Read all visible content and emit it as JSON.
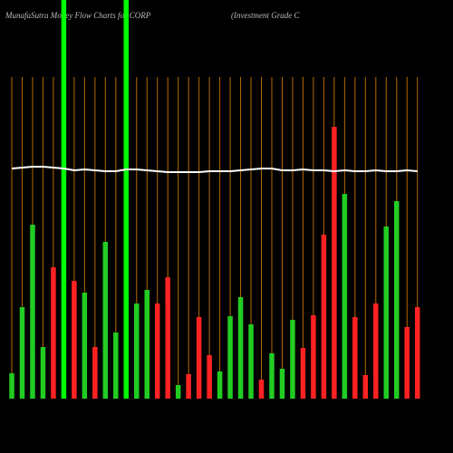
{
  "chart_data": {
    "type": "bar",
    "title": "MunafaSutra  Money Flow  Charts for CORP",
    "subtitle": "(Investment Grade  C",
    "categories": [
      null,
      null,
      null,
      null,
      null,
      null,
      null,
      null,
      null,
      null,
      null,
      null,
      null,
      null,
      null,
      null,
      null,
      null,
      null,
      null,
      null,
      null,
      null,
      null,
      null,
      null,
      null,
      null,
      null,
      null,
      null,
      null,
      null,
      null,
      null,
      null,
      null,
      null,
      null,
      null
    ],
    "values": [
      28,
      101,
      192,
      57,
      145,
      440,
      130,
      117,
      57,
      173,
      73,
      440,
      105,
      120,
      105,
      134,
      15,
      27,
      90,
      48,
      30,
      91,
      112,
      82,
      21,
      50,
      33,
      87,
      56,
      92,
      181,
      300,
      226,
      90,
      26,
      105,
      190,
      218,
      79,
      101
    ],
    "colors": [
      "#22cc22",
      "#22cc22",
      "#22cc22",
      "#22cc22",
      "#ff2222",
      "#00ff00",
      "#ff2222",
      "#22cc22",
      "#ff2222",
      "#22cc22",
      "#22cc22",
      "#00ff00",
      "#22cc22",
      "#22cc22",
      "#ff2222",
      "#ff2222",
      "#22cc22",
      "#ff2222",
      "#ff2222",
      "#ff2222",
      "#22cc22",
      "#22cc22",
      "#22cc22",
      "#22cc22",
      "#ff2222",
      "#22cc22",
      "#22cc22",
      "#22cc22",
      "#ff2222",
      "#ff2222",
      "#ff2222",
      "#ff2222",
      "#22cc22",
      "#ff2222",
      "#ff2222",
      "#ff2222",
      "#22cc22",
      "#22cc22",
      "#ff2222",
      "#ff2222"
    ],
    "line": {
      "color": "#ffffff",
      "values": [
        254,
        255,
        256,
        256,
        255,
        254,
        252,
        253,
        252,
        251,
        251,
        253,
        253,
        252,
        251,
        250,
        250,
        250,
        250,
        251,
        251,
        251,
        252,
        253,
        254,
        254,
        252,
        252,
        253,
        252,
        252,
        251,
        252,
        251,
        251,
        252,
        251,
        251,
        252,
        251
      ]
    },
    "gridline_color": "#b86a00",
    "ylim": [
      0,
      440
    ]
  }
}
